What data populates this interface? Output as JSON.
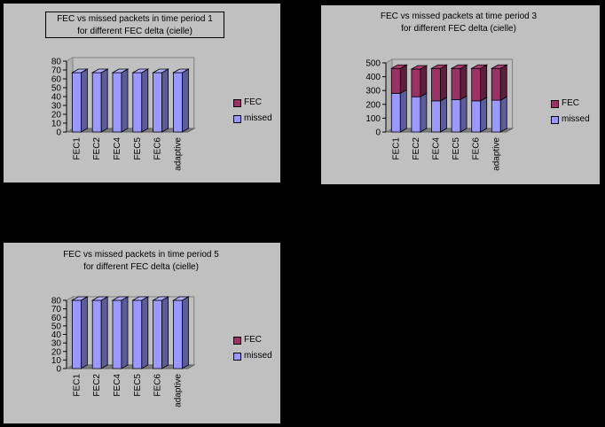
{
  "colors": {
    "fec": "#993366",
    "missed": "#9999ff",
    "panel": "#c0c0c0",
    "page": "#000000"
  },
  "chart_data": [
    {
      "type": "bar",
      "title": "FEC vs missed packets in time period 1\nfor different FEC delta (cielle)",
      "categories": [
        "FEC1",
        "FEC2",
        "FEC4",
        "FEC5",
        "FEC6",
        "adaptive"
      ],
      "series": [
        {
          "name": "missed",
          "values": [
            67,
            67,
            67,
            67,
            67,
            67
          ]
        },
        {
          "name": "FEC",
          "values": [
            0,
            0,
            0,
            0,
            0,
            0
          ]
        }
      ],
      "stacked": true,
      "ylim": [
        0,
        80
      ],
      "yticks": [
        "0",
        "10",
        "20",
        "30",
        "40",
        "50",
        "60",
        "70",
        "80"
      ],
      "legend": "right",
      "grid": false
    },
    {
      "type": "bar",
      "title": "FEC vs missed packets at time period 3\nfor different FEC delta (cielle)",
      "categories": [
        "FEC1",
        "FEC2",
        "FEC4",
        "FEC5",
        "FEC6",
        "adaptive"
      ],
      "series": [
        {
          "name": "missed",
          "values": [
            280,
            255,
            225,
            235,
            225,
            230
          ]
        },
        {
          "name": "FEC",
          "values": [
            180,
            200,
            235,
            225,
            235,
            230
          ]
        }
      ],
      "stacked": true,
      "ylim": [
        0,
        500
      ],
      "yticks": [
        "0",
        "100",
        "200",
        "300",
        "400",
        "500"
      ],
      "legend": "right",
      "grid": false
    },
    {
      "type": "bar",
      "title": "FEC vs missed packets in time period 5\nfor different FEC delta (cielle)",
      "categories": [
        "FEC1",
        "FEC2",
        "FEC4",
        "FEC5",
        "FEC6",
        "adaptive"
      ],
      "series": [
        {
          "name": "missed",
          "values": [
            80,
            80,
            80,
            80,
            80,
            80
          ]
        },
        {
          "name": "FEC",
          "values": [
            0,
            0,
            0,
            0,
            0,
            0
          ]
        }
      ],
      "stacked": true,
      "ylim": [
        0,
        80
      ],
      "yticks": [
        "0",
        "10",
        "20",
        "30",
        "40",
        "50",
        "60",
        "70",
        "80"
      ],
      "legend": "right",
      "grid": false
    }
  ]
}
